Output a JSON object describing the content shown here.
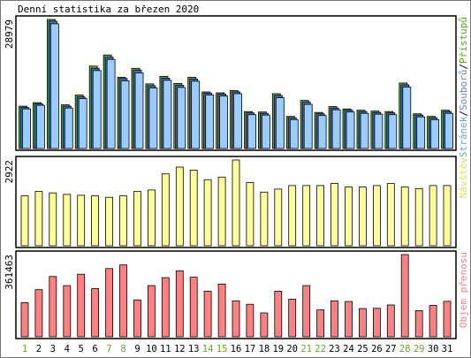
{
  "chart_data": {
    "type": "bar",
    "title": "Denní statistika za březen 2020",
    "days": [
      "1",
      "2",
      "3",
      "4",
      "5",
      "6",
      "7",
      "8",
      "9",
      "10",
      "11",
      "12",
      "13",
      "14",
      "15",
      "16",
      "17",
      "18",
      "19",
      "20",
      "21",
      "22",
      "23",
      "24",
      "25",
      "26",
      "27",
      "28",
      "29",
      "30",
      "31"
    ],
    "weekend_days": [
      "1",
      "7",
      "8",
      "14",
      "15",
      "21",
      "22",
      "28",
      "29"
    ],
    "panels": [
      {
        "id": "hits",
        "max_label": "28979",
        "ymax": 28979,
        "side_label_parts": [
          {
            "text": "Stránek",
            "color": "#6aa3e8"
          },
          {
            "text": "/",
            "color": "#000000"
          },
          {
            "text": "Souborů",
            "color": "#6688cc"
          },
          {
            "text": "/",
            "color": "#000000"
          },
          {
            "text": "Přístupů",
            "color": "#55aa22"
          }
        ],
        "series": [
          {
            "name": "Přístupů",
            "color": "#5fa83a",
            "values": [
              9500,
              10300,
              28979,
              9800,
              12000,
              18500,
              21000,
              16000,
              18000,
              14500,
              16200,
              14600,
              16000,
              12700,
              12500,
              13000,
              8300,
              8200,
              12300,
              7200,
              10800,
              8100,
              9400,
              8900,
              8600,
              8400,
              8300,
              14700,
              7800,
              7200,
              8600
            ]
          },
          {
            "name": "Souborů",
            "color": "#4470c4",
            "values": [
              9200,
              10000,
              28600,
              9500,
              11600,
              18000,
              20500,
              15700,
              17600,
              14100,
              15800,
              14200,
              15600,
              12400,
              12200,
              12700,
              8000,
              7900,
              11900,
              6900,
              10400,
              7800,
              9100,
              8600,
              8300,
              8100,
              8000,
              14300,
              7500,
              6900,
              8300
            ]
          },
          {
            "name": "Stránek",
            "color": "#99ccff",
            "values": [
              8900,
              9700,
              28000,
              9100,
              11200,
              17500,
              20000,
              15200,
              17000,
              13600,
              15300,
              13700,
              15100,
              12000,
              11800,
              12300,
              7600,
              7500,
              11400,
              6500,
              9900,
              7400,
              8700,
              8200,
              7900,
              7700,
              7600,
              13800,
              7100,
              6500,
              7900
            ]
          }
        ]
      },
      {
        "id": "visits",
        "max_label": "2922",
        "ymax": 2922,
        "side_label_parts": [
          {
            "text": "Návštěv",
            "color": "#dddd55"
          }
        ],
        "series": [
          {
            "name": "Návštěv",
            "color": "#ffff99",
            "values": [
              1700,
              1850,
              1800,
              1750,
              1720,
              1700,
              1650,
              1700,
              1850,
              1900,
              2450,
              2680,
              2580,
              2250,
              2340,
              2922,
              2150,
              1830,
              1930,
              2050,
              2050,
              2050,
              2120,
              2000,
              2000,
              2050,
              2120,
              2000,
              1950,
              2050,
              2050
            ]
          }
        ]
      },
      {
        "id": "traffic",
        "max_label": "361463",
        "ymax": 361463,
        "side_label_parts": [
          {
            "text": "Objem přenosu",
            "color": "#ee8888"
          }
        ],
        "series": [
          {
            "name": "Objem přenosu",
            "color": "#ff8080",
            "values": [
              150000,
              207000,
              265000,
              225000,
              275000,
              212000,
              300000,
              316000,
              162000,
              225000,
              260000,
              290000,
              262000,
              200000,
              232000,
              158000,
              143000,
              105000,
              200000,
              165000,
              225000,
              118000,
              158000,
              155000,
              124000,
              125000,
              140000,
              361463,
              115000,
              138000,
              156000
            ]
          }
        ]
      }
    ]
  }
}
